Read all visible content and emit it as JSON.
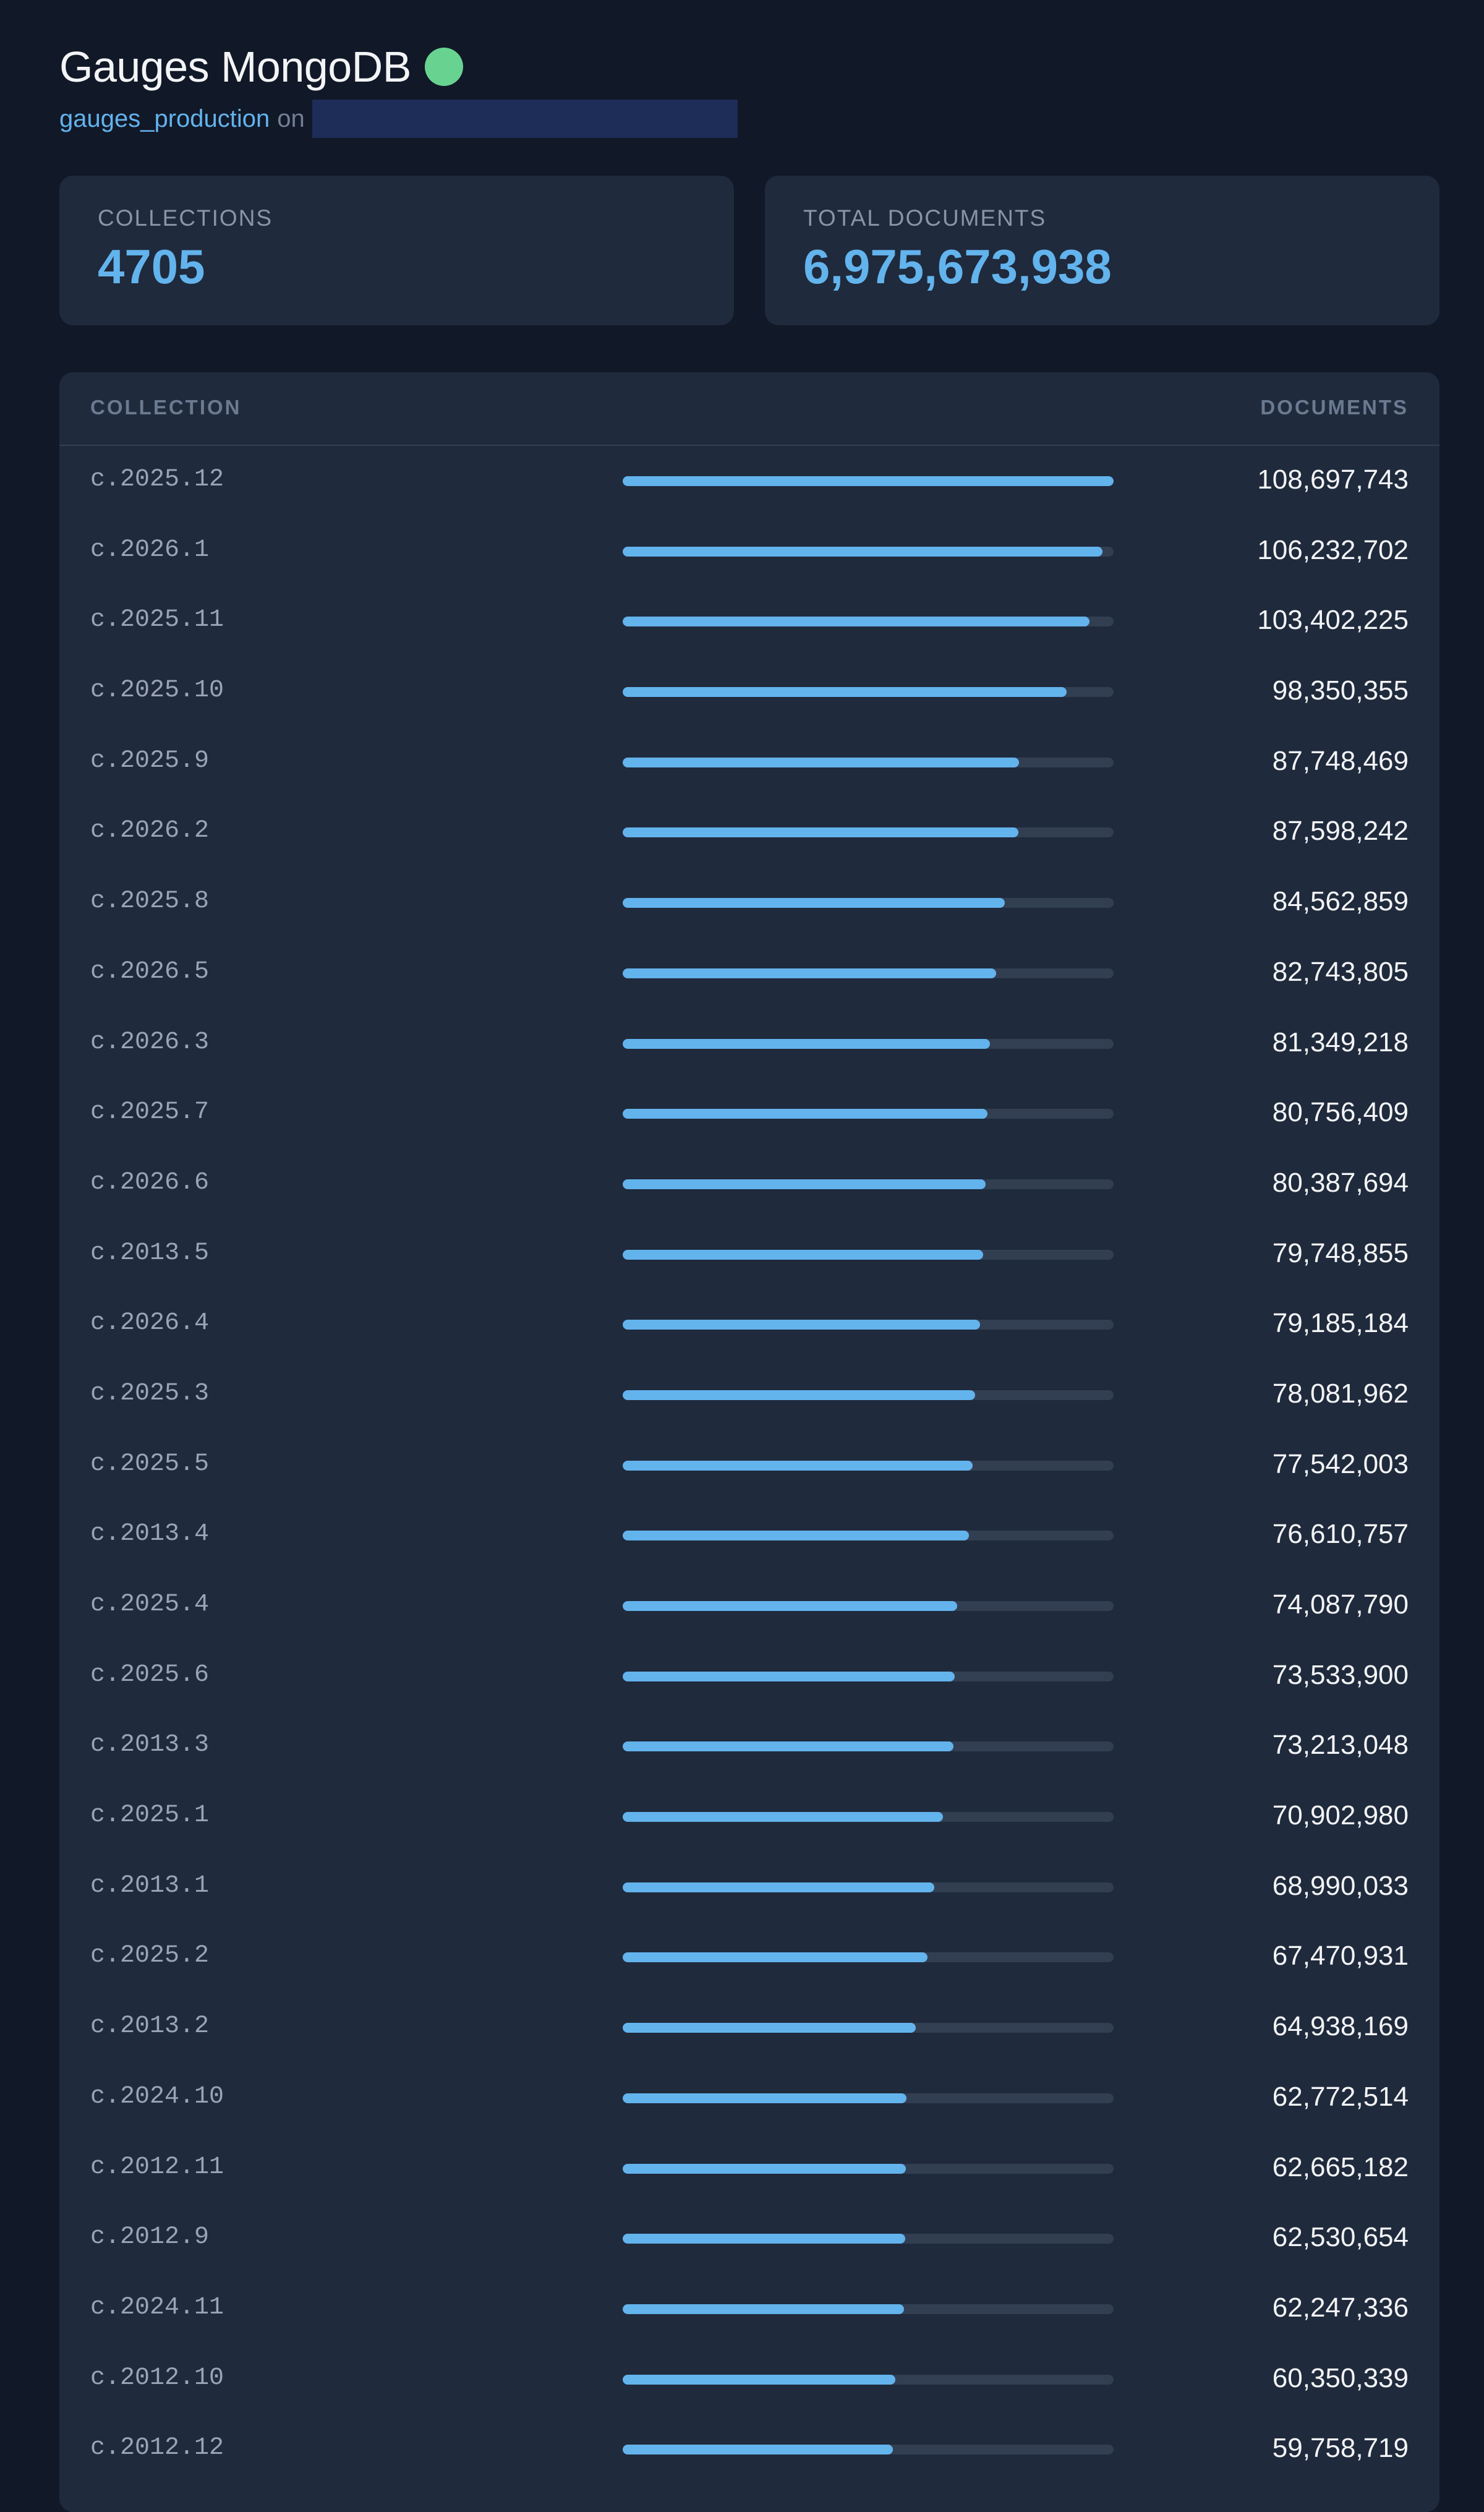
{
  "header": {
    "title": "Gauges MongoDB",
    "db_name": "gauges_production",
    "on_word": "on",
    "status_color": "#68d391"
  },
  "stats": {
    "collections_label": "COLLECTIONS",
    "collections_value": "4705",
    "total_docs_label": "TOTAL DOCUMENTS",
    "total_docs_value": "6,975,673,938"
  },
  "table": {
    "col_collection": "COLLECTION",
    "col_documents": "DOCUMENTS",
    "max_documents": 108697743,
    "rows": [
      {
        "name": "c.2025.12",
        "count": "108,697,743",
        "value": 108697743
      },
      {
        "name": "c.2026.1",
        "count": "106,232,702",
        "value": 106232702
      },
      {
        "name": "c.2025.11",
        "count": "103,402,225",
        "value": 103402225
      },
      {
        "name": "c.2025.10",
        "count": "98,350,355",
        "value": 98350355
      },
      {
        "name": "c.2025.9",
        "count": "87,748,469",
        "value": 87748469
      },
      {
        "name": "c.2026.2",
        "count": "87,598,242",
        "value": 87598242
      },
      {
        "name": "c.2025.8",
        "count": "84,562,859",
        "value": 84562859
      },
      {
        "name": "c.2026.5",
        "count": "82,743,805",
        "value": 82743805
      },
      {
        "name": "c.2026.3",
        "count": "81,349,218",
        "value": 81349218
      },
      {
        "name": "c.2025.7",
        "count": "80,756,409",
        "value": 80756409
      },
      {
        "name": "c.2026.6",
        "count": "80,387,694",
        "value": 80387694
      },
      {
        "name": "c.2013.5",
        "count": "79,748,855",
        "value": 79748855
      },
      {
        "name": "c.2026.4",
        "count": "79,185,184",
        "value": 79185184
      },
      {
        "name": "c.2025.3",
        "count": "78,081,962",
        "value": 78081962
      },
      {
        "name": "c.2025.5",
        "count": "77,542,003",
        "value": 77542003
      },
      {
        "name": "c.2013.4",
        "count": "76,610,757",
        "value": 76610757
      },
      {
        "name": "c.2025.4",
        "count": "74,087,790",
        "value": 74087790
      },
      {
        "name": "c.2025.6",
        "count": "73,533,900",
        "value": 73533900
      },
      {
        "name": "c.2013.3",
        "count": "73,213,048",
        "value": 73213048
      },
      {
        "name": "c.2025.1",
        "count": "70,902,980",
        "value": 70902980
      },
      {
        "name": "c.2013.1",
        "count": "68,990,033",
        "value": 68990033
      },
      {
        "name": "c.2025.2",
        "count": "67,470,931",
        "value": 67470931
      },
      {
        "name": "c.2013.2",
        "count": "64,938,169",
        "value": 64938169
      },
      {
        "name": "c.2024.10",
        "count": "62,772,514",
        "value": 62772514
      },
      {
        "name": "c.2012.11",
        "count": "62,665,182",
        "value": 62665182
      },
      {
        "name": "c.2012.9",
        "count": "62,530,654",
        "value": 62530654
      },
      {
        "name": "c.2024.11",
        "count": "62,247,336",
        "value": 62247336
      },
      {
        "name": "c.2012.10",
        "count": "60,350,339",
        "value": 60350339
      },
      {
        "name": "c.2012.12",
        "count": "59,758,719",
        "value": 59758719
      }
    ]
  }
}
